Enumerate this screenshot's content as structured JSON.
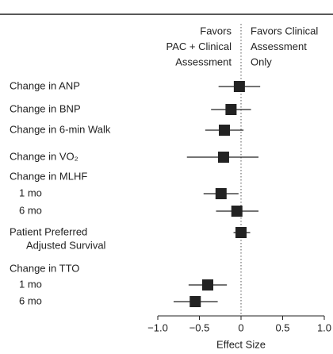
{
  "chart_data": {
    "type": "forest",
    "header_left": [
      "Favors",
      "PAC + Clinical",
      "Assessment"
    ],
    "header_right": [
      "Favors Clinical",
      "Assessment",
      "Only"
    ],
    "x_label": "Effect Size",
    "xlim": [
      -1.0,
      1.0
    ],
    "xticks": [
      {
        "value": -1.0,
        "label": "−1.0"
      },
      {
        "value": -0.5,
        "label": "−0.5"
      },
      0,
      0.5,
      {
        "value": 1.0,
        "label": "1.0"
      }
    ],
    "color": "#222222",
    "rows": [
      {
        "label": [
          "Change in ANP"
        ],
        "estimate": -0.02,
        "ci_low": -0.27,
        "ci_high": 0.23
      },
      {
        "label": [
          "Change in BNP"
        ],
        "estimate": -0.12,
        "ci_low": -0.36,
        "ci_high": 0.12
      },
      {
        "label": [
          "Change in 6-min Walk"
        ],
        "estimate": -0.2,
        "ci_low": -0.43,
        "ci_high": 0.03
      },
      {
        "label": [
          "Change in VO₂"
        ],
        "estimate": -0.21,
        "ci_low": -0.65,
        "ci_high": 0.21
      },
      {
        "label": [
          "Change in MLHF"
        ]
      },
      {
        "label": [
          "1 mo"
        ],
        "estimate": -0.24,
        "ci_low": -0.45,
        "ci_high": -0.03
      },
      {
        "label": [
          "6 mo"
        ],
        "estimate": -0.05,
        "ci_low": -0.3,
        "ci_high": 0.21
      },
      {
        "label": [
          "Patient Preferred",
          "Adjusted Survival"
        ],
        "estimate": 0.0,
        "ci_low": -0.09,
        "ci_high": 0.11
      },
      {
        "label": [
          "Change in TTO"
        ]
      },
      {
        "label": [
          "1 mo"
        ],
        "estimate": -0.4,
        "ci_low": -0.63,
        "ci_high": -0.17
      },
      {
        "label": [
          "6 mo"
        ],
        "estimate": -0.55,
        "ci_low": -0.81,
        "ci_high": -0.28
      }
    ]
  }
}
